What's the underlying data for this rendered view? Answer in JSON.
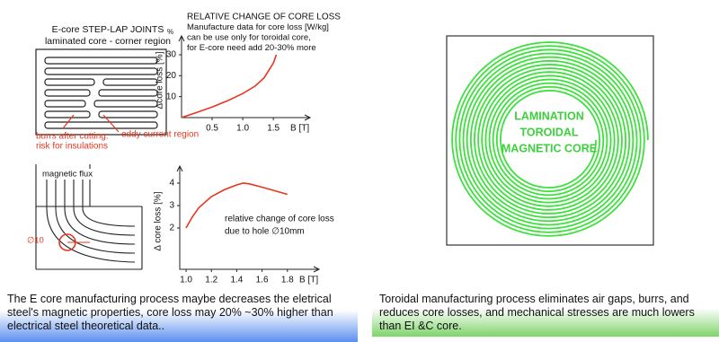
{
  "left_panel": {
    "diagram_labels": {
      "joint_title": "E-core STEP-LAP JOINTS",
      "joint_subtitle": "laminated core - corner region",
      "burrs_1": "burrs after cutting:",
      "burrs_2": "risk for insulations",
      "eddy": "eddy current region",
      "flux": "magnetic flux",
      "hole": "∅10"
    },
    "chart_1": {
      "title_lines": [
        "RELATIVE CHANGE OF CORE LOSS",
        "Manufacture data for core loss [W/kg]",
        "can be use only for toroidal core,",
        "for E-core need add 20-30% more"
      ],
      "y_unit": "%",
      "ylabel": "Δcore loss [%]",
      "xlabel": "B [T]",
      "x": [
        0,
        0.25,
        0.5,
        0.75,
        1.0,
        1.2,
        1.35,
        1.5,
        1.55
      ],
      "values": [
        0,
        2.5,
        5,
        8,
        11.5,
        15,
        19,
        26,
        30
      ],
      "xlim": [
        0,
        2.1
      ],
      "ylim": [
        0,
        39
      ],
      "xticks": [
        0.5,
        {
          "value": 1,
          "label": "1.0"
        },
        1.5
      ],
      "yticks": [
        10,
        20,
        30
      ],
      "color": "#e8351e"
    },
    "chart_2": {
      "annotation_lines": [
        "relative change of core loss",
        "due to hole ∅10mm"
      ],
      "ylabel": "Δ core loss [%]",
      "xlabel": "B [T]",
      "x": [
        1.0,
        1.05,
        1.1,
        1.2,
        1.3,
        1.4,
        1.45,
        1.5,
        1.6,
        1.7,
        1.8
      ],
      "values": [
        2.0,
        2.5,
        2.9,
        3.4,
        3.7,
        3.92,
        4.0,
        3.97,
        3.82,
        3.66,
        3.5
      ],
      "xlim": [
        0.95,
        2.05
      ],
      "ylim": [
        0.16,
        4.76
      ],
      "xticks": [
        {
          "value": 1,
          "label": "1.0"
        },
        1.2,
        1.4,
        1.6,
        1.8
      ],
      "yticks": [
        2,
        3,
        4
      ],
      "color": "#e8351e"
    },
    "caption": "The E core manufacturing process maybe decreases the eletrical steel's magnetic properties, core loss may 20% ~30% higher than electrical steel theoretical data.."
  },
  "right_panel": {
    "core_label_lines": [
      "LAMINATION",
      "TOROIDAL",
      "MAGNETIC CORE"
    ],
    "caption": "Toroidal manufacturing process eliminates air gaps, burrs, and reduces core losses, and mechanical stresses are much lowers than EI &C core."
  }
}
